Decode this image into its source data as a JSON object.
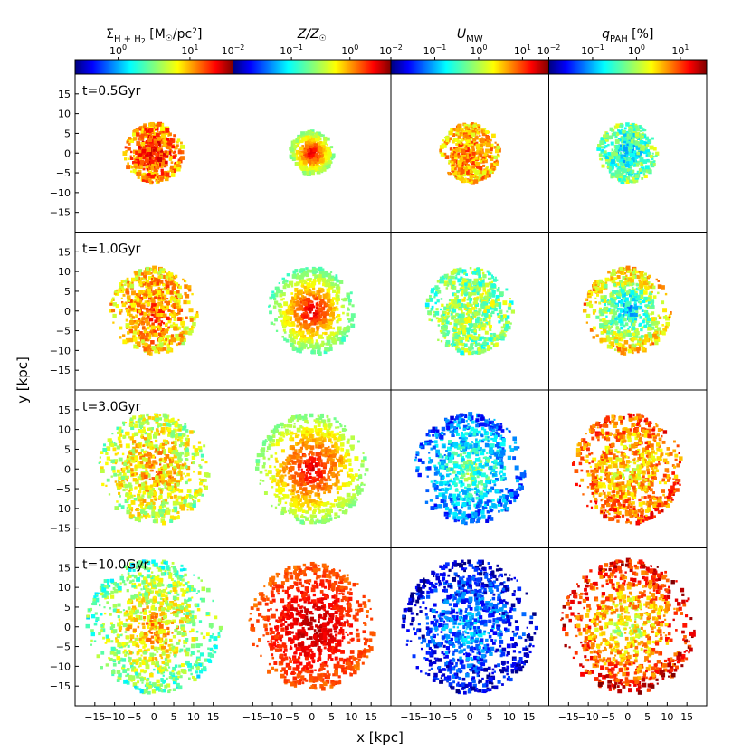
{
  "chart_data": {
    "type": "heatmap",
    "description_grid": "4x4 small multiples of galaxy face-on maps",
    "xlabel": "x [kpc]",
    "ylabel": "y [kpc]",
    "xlim": [
      -20,
      20
    ],
    "ylim": [
      -20,
      20
    ],
    "xticks": [
      -15,
      -10,
      -5,
      0,
      5,
      10,
      15
    ],
    "yticks": [
      15,
      10,
      5,
      0,
      -5,
      -10,
      -15
    ],
    "xtick_labels": [
      "−15",
      "−10",
      "−5",
      "0",
      "5",
      "10",
      "15"
    ],
    "ytick_labels": [
      "15",
      "10",
      "5",
      "0",
      "−5",
      "−10",
      "−15"
    ],
    "columns": [
      {
        "title": "ΣH+H2 [M☉/pc2]",
        "title_main": "Σ",
        "title_sub": "H + H",
        "title_sub2": "2",
        "title_rest": " [M",
        "title_sun": "☉",
        "title_end": "/pc",
        "title_sup": "2",
        "title_close": "]",
        "colorbar_ticks": [
          "10",
          "10"
        ],
        "colorbar_exps": [
          "0",
          "1"
        ],
        "colorbar_tick_values": [
          1,
          10
        ],
        "colorbar_log_range": [
          -0.6,
          1.6
        ]
      },
      {
        "title": "Z/Z☉",
        "title_main": "Z/Z",
        "title_sun": "☉",
        "colorbar_ticks": [
          "10",
          "10",
          "10"
        ],
        "colorbar_exps": [
          "−2",
          "−1",
          "0"
        ],
        "colorbar_tick_values": [
          0.01,
          0.1,
          1
        ],
        "colorbar_log_range": [
          -2.0,
          0.7
        ]
      },
      {
        "title": "U MW",
        "title_main": "U",
        "title_sub": "MW",
        "colorbar_ticks": [
          "10",
          "10",
          "10",
          "10"
        ],
        "colorbar_exps": [
          "−2",
          "−1",
          "0",
          "1"
        ],
        "colorbar_tick_values": [
          0.01,
          0.1,
          1,
          10
        ],
        "colorbar_log_range": [
          -2.0,
          1.6
        ]
      },
      {
        "title": "qPAH [%]",
        "title_main": "q",
        "title_sub": "PAH",
        "title_rest": " [%]",
        "colorbar_ticks": [
          "10",
          "10",
          "10",
          "10"
        ],
        "colorbar_exps": [
          "−2",
          "−1",
          "0",
          "1"
        ],
        "colorbar_tick_values": [
          0.01,
          0.1,
          1,
          10
        ],
        "colorbar_log_range": [
          -2.0,
          1.6
        ]
      }
    ],
    "rows": [
      {
        "time_label": "t=0.5Gyr",
        "disk_radius_kpc": [
          7.5,
          5.5,
          7.5,
          7.5
        ],
        "center_value": [
          0.85,
          0.93,
          0.75,
          0.35
        ],
        "edge_value": [
          0.72,
          0.5,
          0.68,
          0.5
        ]
      },
      {
        "time_label": "t=1.0Gyr",
        "disk_radius_kpc": [
          11,
          11,
          11,
          11
        ],
        "center_value": [
          0.78,
          0.92,
          0.55,
          0.3
        ],
        "edge_value": [
          0.65,
          0.45,
          0.48,
          0.7
        ]
      },
      {
        "time_label": "t=3.0Gyr",
        "disk_radius_kpc": [
          14,
          14,
          14,
          14
        ],
        "center_value": [
          0.7,
          0.92,
          0.5,
          0.62
        ],
        "edge_value": [
          0.55,
          0.5,
          0.2,
          0.8
        ]
      },
      {
        "time_label": "t=10.0Gyr",
        "disk_radius_kpc": [
          17,
          16,
          17,
          17
        ],
        "center_value": [
          0.72,
          0.95,
          0.3,
          0.55
        ],
        "edge_value": [
          0.45,
          0.78,
          0.07,
          0.9
        ]
      }
    ],
    "colormap": "jet"
  }
}
